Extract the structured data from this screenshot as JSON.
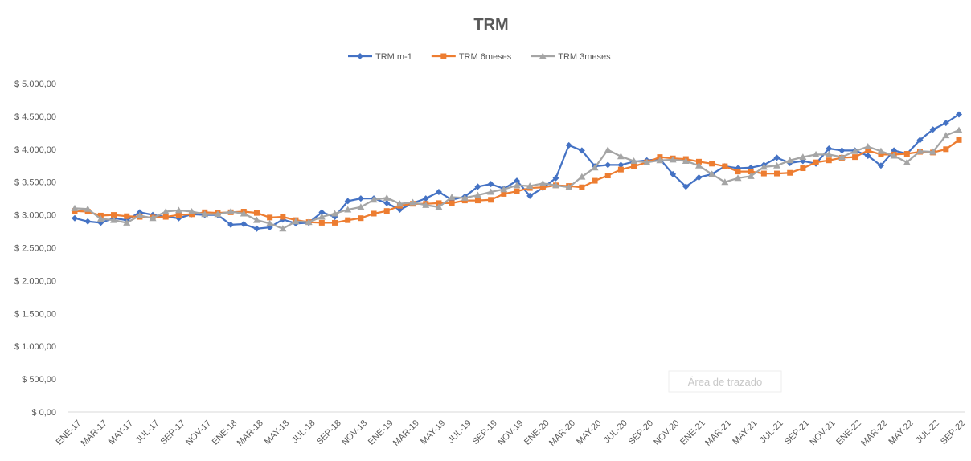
{
  "chart_data": {
    "type": "line",
    "title": "TRM",
    "categories": [
      "ENE-17",
      null,
      "MAR-17",
      null,
      "MAY-17",
      null,
      "JUL-17",
      null,
      "SEP-17",
      null,
      "NOV-17",
      null,
      "ENE-18",
      null,
      "MAR-18",
      null,
      "MAY-18",
      null,
      "JUL-18",
      null,
      "SEP-18",
      null,
      "NOV-18",
      null,
      "ENE-19",
      null,
      "MAR-19",
      null,
      "MAY-19",
      null,
      "JUL-19",
      null,
      "SEP-19",
      null,
      "NOV-19",
      null,
      "ENE-20",
      null,
      "MAR-20",
      null,
      "MAY-20",
      null,
      "JUL-20",
      null,
      "SEP-20",
      null,
      "NOV-20",
      null,
      "ENE-21",
      null,
      "MAR-21",
      null,
      "MAY-21",
      null,
      "JUL-21",
      null,
      "SEP-21",
      null,
      "NOV-21",
      null,
      "ENE-22",
      null,
      "MAR-22",
      null,
      "MAY-22",
      null,
      "JUL-22",
      null,
      "SEP-22"
    ],
    "series": [
      {
        "name": "TRM m-1",
        "color": "#4472c4",
        "marker": "diamond",
        "values": [
          2950,
          2900,
          2880,
          2950,
          2920,
          3040,
          3000,
          2970,
          2950,
          3010,
          3000,
          3000,
          2850,
          2860,
          2790,
          2810,
          2930,
          2870,
          2880,
          3040,
          2970,
          3210,
          3250,
          3250,
          3180,
          3080,
          3180,
          3250,
          3350,
          3230,
          3280,
          3430,
          3470,
          3400,
          3520,
          3290,
          3410,
          3560,
          4060,
          3980,
          3740,
          3760,
          3760,
          3810,
          3830,
          3850,
          3620,
          3430,
          3570,
          3620,
          3740,
          3710,
          3720,
          3760,
          3870,
          3790,
          3820,
          3780,
          4010,
          3980,
          3980,
          3900,
          3750,
          3980,
          3930,
          4140,
          4300,
          4400,
          4530
        ]
      },
      {
        "name": "TRM 6meses",
        "color": "#ed7d31",
        "marker": "square",
        "values": [
          3060,
          3050,
          2990,
          3000,
          2980,
          2970,
          2960,
          2970,
          3000,
          3010,
          3040,
          3030,
          3040,
          3050,
          3030,
          2960,
          2970,
          2920,
          2890,
          2880,
          2880,
          2920,
          2950,
          3020,
          3060,
          3140,
          3170,
          3170,
          3180,
          3180,
          3220,
          3220,
          3230,
          3320,
          3360,
          3410,
          3420,
          3450,
          3440,
          3420,
          3520,
          3600,
          3690,
          3740,
          3800,
          3880,
          3860,
          3850,
          3810,
          3780,
          3740,
          3660,
          3660,
          3630,
          3630,
          3640,
          3710,
          3800,
          3830,
          3870,
          3880,
          3980,
          3920,
          3920,
          3930,
          3960,
          3950,
          4000,
          4140
        ]
      },
      {
        "name": "TRM 3meses",
        "color": "#a5a5a5",
        "marker": "triangle",
        "values": [
          3100,
          3090,
          2940,
          2920,
          2880,
          2990,
          2950,
          3050,
          3070,
          3050,
          3010,
          3010,
          3050,
          3020,
          2920,
          2870,
          2790,
          2900,
          2890,
          2970,
          3020,
          3080,
          3120,
          3230,
          3260,
          3170,
          3190,
          3150,
          3120,
          3270,
          3260,
          3300,
          3350,
          3390,
          3450,
          3440,
          3480,
          3450,
          3420,
          3580,
          3720,
          3990,
          3890,
          3820,
          3800,
          3830,
          3840,
          3820,
          3750,
          3620,
          3500,
          3560,
          3590,
          3730,
          3750,
          3830,
          3880,
          3920,
          3920,
          3880,
          3970,
          4040,
          3970,
          3900,
          3800,
          3970,
          3960,
          4210,
          4290
        ]
      }
    ],
    "ylim": [
      0,
      5000
    ],
    "yticks": [
      {
        "value": 0,
        "label": "$ 0,00"
      },
      {
        "value": 500,
        "label": "$ 500,00"
      },
      {
        "value": 1000,
        "label": "$ 1.000,00"
      },
      {
        "value": 1500,
        "label": "$ 1.500,00"
      },
      {
        "value": 2000,
        "label": "$ 2.000,00"
      },
      {
        "value": 2500,
        "label": "$ 2.500,00"
      },
      {
        "value": 3000,
        "label": "$ 3.000,00"
      },
      {
        "value": 3500,
        "label": "$ 3.500,00"
      },
      {
        "value": 4000,
        "label": "$ 4.000,00"
      },
      {
        "value": 4500,
        "label": "$ 4.500,00"
      },
      {
        "value": 5000,
        "label": "$ 5.000,00"
      }
    ],
    "grid": false,
    "legend": "top",
    "tooltip": "Área de trazado"
  }
}
